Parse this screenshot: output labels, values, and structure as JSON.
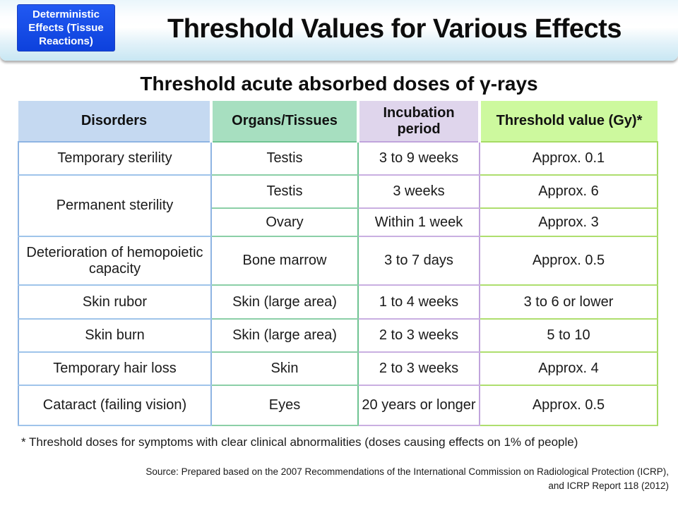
{
  "banner": {
    "tag_label": "Deterministic Effects (Tissue Reactions)",
    "title": "Threshold Values for Various Effects"
  },
  "subtitle": "Threshold acute absorbed doses of γ-rays",
  "table": {
    "headers": [
      "Disorders",
      "Organs/Tissues",
      "Incubation period",
      "Threshold value (Gy)*"
    ],
    "rows": [
      {
        "disorder": "Temporary sterility",
        "organ": "Testis",
        "period": "3 to 9 weeks",
        "value": "Approx. 0.1"
      },
      {
        "disorder": "Permanent sterility",
        "organ": "Testis",
        "period": "3 weeks",
        "value": "Approx. 6"
      },
      {
        "organ": "Ovary",
        "period": "Within 1 week",
        "value": "Approx. 3"
      },
      {
        "disorder": "Deterioration of hemopoietic capacity",
        "organ": "Bone marrow",
        "period": "3 to 7 days",
        "value": "Approx. 0.5"
      },
      {
        "disorder": "Skin rubor",
        "organ": "Skin (large area)",
        "period": "1 to 4 weeks",
        "value": "3 to 6 or lower"
      },
      {
        "disorder": "Skin burn",
        "organ": "Skin (large area)",
        "period": "2 to 3 weeks",
        "value": "5 to 10"
      },
      {
        "disorder": "Temporary hair loss",
        "organ": "Skin",
        "period": "2 to 3 weeks",
        "value": "Approx. 4"
      },
      {
        "disorder": "Cataract (failing vision)",
        "organ": "Eyes",
        "period": "20 years or longer",
        "value": "Approx. 0.5"
      }
    ]
  },
  "footnote": "* Threshold doses for symptoms with clear clinical abnormalities (doses causing effects on 1% of people)",
  "source": {
    "line1": "Source: Prepared based on the 2007 Recommendations of the International Commission on Radiological Protection (ICRP),",
    "line2": "and ICRP Report 118 (2012)"
  },
  "colors": {
    "banner_gradient_bottom": "#c8e7f3",
    "tag_background": "#1550ec",
    "header_disorders_bg": "#c5d9f1",
    "header_organs_bg": "#a7dfc0",
    "header_incubation_bg": "#dfd5ec",
    "header_threshold_bg": "#cdf99e",
    "border_disorders": "#8eb4e3",
    "border_organs": "#6fc492",
    "border_incubation": "#c0a4dc",
    "border_threshold": "#a6db64"
  }
}
